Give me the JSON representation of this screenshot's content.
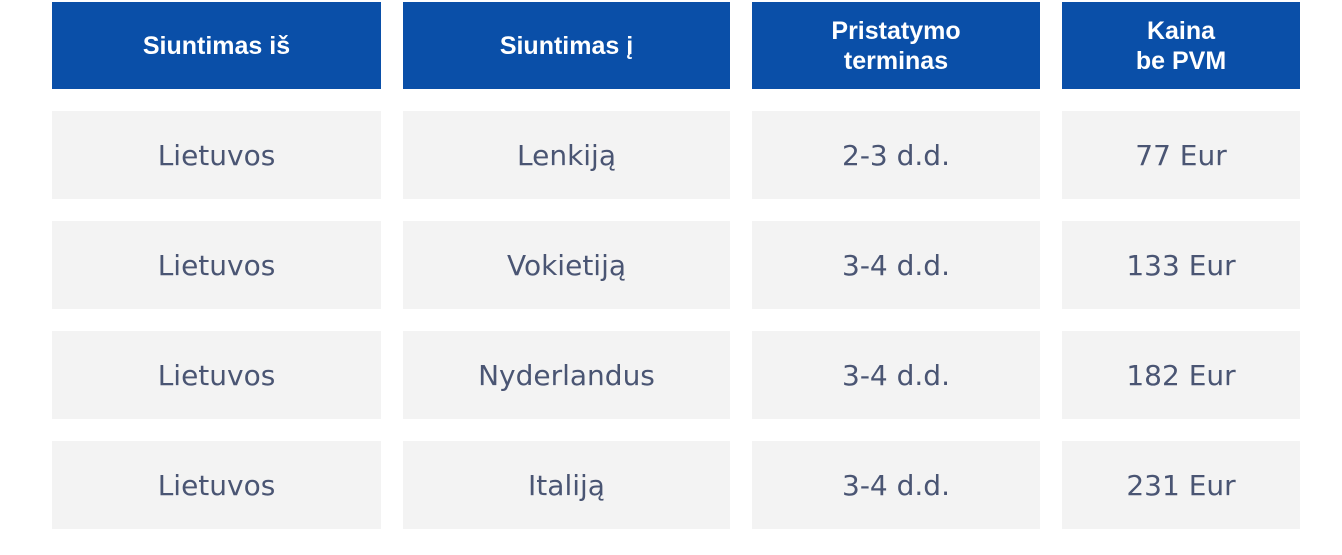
{
  "table": {
    "header": [
      "Siuntimas iš",
      "Siuntimas į",
      "Pristatymo\nterminas",
      "Kaina\nbe PVM"
    ],
    "rows": [
      [
        "Lietuvos",
        "Lenkiją",
        "2-3 d.d.",
        "77 Eur"
      ],
      [
        "Lietuvos",
        "Vokietiją",
        "3-4 d.d.",
        "133 Eur"
      ],
      [
        "Lietuvos",
        "Nyderlandus",
        "3-4 d.d.",
        "182 Eur"
      ],
      [
        "Lietuvos",
        "Italiją",
        "3-4 d.d.",
        "231 Eur"
      ]
    ]
  }
}
